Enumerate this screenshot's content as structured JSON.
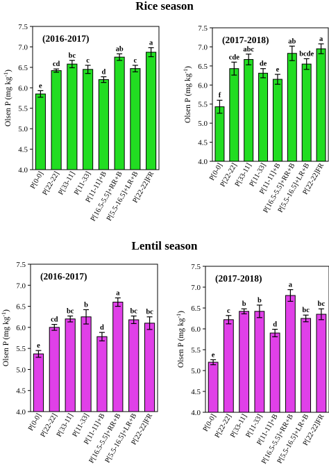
{
  "titles": {
    "rice": "Rice season",
    "lentil": "Lentil season"
  },
  "colors": {
    "rice_bar": "#22dd22",
    "lentil_bar": "#e040e8",
    "outline": "#000000"
  },
  "chart_data": [
    {
      "type": "bar",
      "title": "(2016-2017)",
      "season": "Rice season",
      "ylabel": "Olsen P (mg kg-1)",
      "ylim": [
        4.0,
        7.5
      ],
      "yticks": [
        "4.0",
        "4.5",
        "5.0",
        "5.5",
        "6.0",
        "6.5",
        "7.0",
        "7.5"
      ],
      "categories": [
        "P[0-0]",
        "P[22-22]",
        "P[33-11]",
        "P[11-33]",
        "P[11-11]+B",
        "P[16.5-5.5]+RR+B",
        "P[5.5-16.5]+LR+B",
        "P[22-22]FR"
      ],
      "values": [
        5.85,
        6.42,
        6.58,
        6.45,
        6.2,
        6.75,
        6.47,
        6.87
      ],
      "errors": [
        0.08,
        0.04,
        0.09,
        0.1,
        0.07,
        0.08,
        0.08,
        0.11
      ],
      "labels": [
        "e",
        "cd",
        "bc",
        "c",
        "d",
        "ab",
        "c",
        "a"
      ],
      "color": "#22dd22"
    },
    {
      "type": "bar",
      "title": "(2017-2018)",
      "season": "Rice season",
      "ylabel": "Olsen P (mg kg-1)",
      "ylim": [
        4.0,
        7.5
      ],
      "yticks": [
        "4.0",
        "4.5",
        "5.0",
        "5.5",
        "6.0",
        "6.5",
        "7.0",
        "7.5"
      ],
      "categories": [
        "P[0-0]",
        "P[22-22]",
        "P[33-11]",
        "P[11-33]",
        "P[11-11]+B",
        "P[16.5-5.5]+RR+B",
        "P[5.5-16.5]+LR+B",
        "P[22-22]FR"
      ],
      "values": [
        5.43,
        6.43,
        6.67,
        6.31,
        6.15,
        6.83,
        6.55,
        6.95
      ],
      "errors": [
        0.17,
        0.17,
        0.14,
        0.12,
        0.13,
        0.19,
        0.14,
        0.13
      ],
      "labels": [
        "f",
        "cde",
        "abc",
        "de",
        "e",
        "ab",
        "bcde",
        "a"
      ],
      "color": "#22dd22"
    },
    {
      "type": "bar",
      "title": "(2016-2017)",
      "season": "Lentil season",
      "ylabel": "Olsen P (mg kg-1)",
      "ylim": [
        4.0,
        7.5
      ],
      "yticks": [
        "4.0",
        "4.5",
        "5.0",
        "5.5",
        "6.0",
        "6.5",
        "7.0",
        "7.5"
      ],
      "categories": [
        "P[0-0]",
        "P[22-22]",
        "P[33-11]",
        "P[11-33]",
        "P[11-11]+B",
        "P[16.5-5.5]+RR+B",
        "P[5.5-16.5]+LR+B",
        "P[22-22]FR"
      ],
      "values": [
        5.37,
        6.0,
        6.2,
        6.25,
        5.78,
        6.6,
        6.18,
        6.1
      ],
      "errors": [
        0.08,
        0.07,
        0.07,
        0.17,
        0.1,
        0.1,
        0.09,
        0.15
      ],
      "labels": [
        "e",
        "cd",
        "bc",
        "b",
        "d",
        "a",
        "bc",
        "bc"
      ],
      "color": "#e040e8"
    },
    {
      "type": "bar",
      "title": "(2017-2018)",
      "season": "Lentil season",
      "ylabel": "Olsen P (mg kg-1)",
      "ylim": [
        4.0,
        7.5
      ],
      "yticks": [
        "4.0",
        "4.5",
        "5.0",
        "5.5",
        "6.0",
        "6.5",
        "7.0",
        "7.5"
      ],
      "categories": [
        "P[0-0]",
        "P[22-22]",
        "P[33-11]",
        "P[11-33]",
        "P[11-11]+B",
        "P[16.5-5.5]+RR+B",
        "P[5.5-16.5]+LR+B",
        "P[22-22]FR"
      ],
      "values": [
        5.2,
        6.22,
        6.42,
        6.42,
        5.9,
        6.8,
        6.25,
        6.35
      ],
      "errors": [
        0.06,
        0.1,
        0.06,
        0.15,
        0.09,
        0.14,
        0.08,
        0.13
      ],
      "labels": [
        "e",
        "c",
        "b",
        "b",
        "d",
        "a",
        "bc",
        "bc"
      ],
      "color": "#e040e8"
    }
  ]
}
